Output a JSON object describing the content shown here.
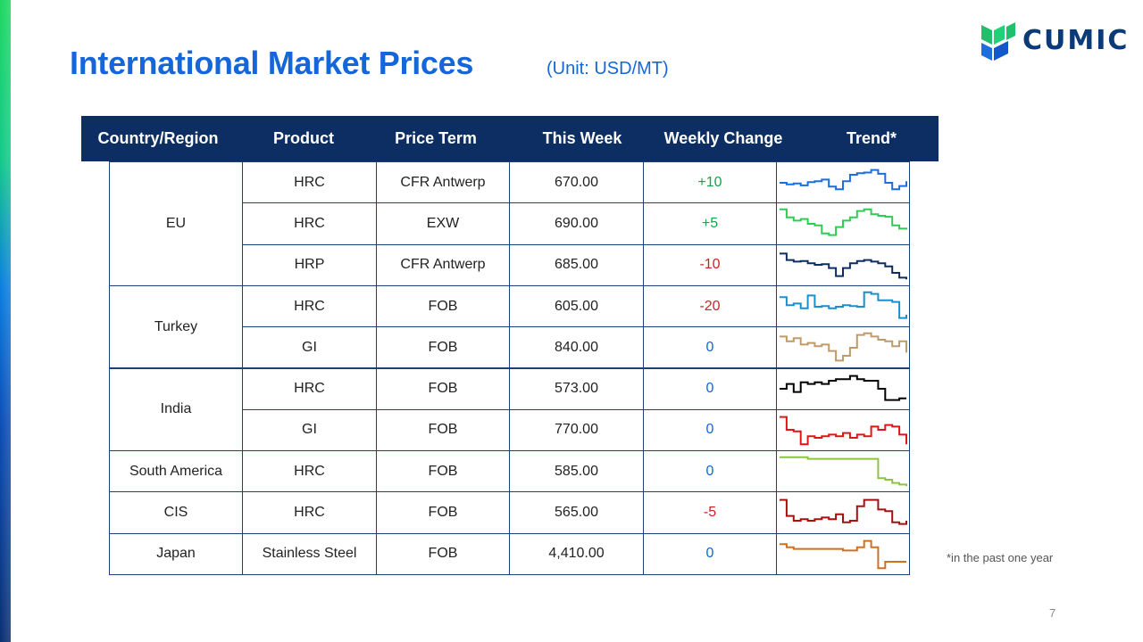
{
  "slide": {
    "title": "International Market Prices",
    "unit": "(Unit: USD/MT)",
    "footnote": "*in the past one year",
    "page_number": "7",
    "brand": "CUMIC",
    "brand_colors": {
      "title": "#1466d9",
      "header": "#0c2e63",
      "logo_green": "#1fc06b",
      "logo_blue": "#1d6fe0"
    }
  },
  "table": {
    "headers": [
      "Country/Region",
      "Product",
      "Price Term",
      "This Week",
      "Weekly Change",
      "Trend*"
    ],
    "groups": [
      {
        "region": "EU",
        "rows": [
          {
            "product": "HRC",
            "term": "CFR Antwerp",
            "price": "670.00",
            "change": "+10",
            "color": "#1a6ee0",
            "trend": [
              0.5,
              0.55,
              0.52,
              0.58,
              0.48,
              0.45,
              0.4,
              0.62,
              0.7,
              0.45,
              0.25,
              0.2,
              0.18,
              0.1,
              0.22,
              0.5,
              0.7,
              0.6,
              0.45
            ]
          },
          {
            "product": "HRC",
            "term": "EXW",
            "price": "690.00",
            "change": "+5",
            "color": "#2ecc55",
            "trend": [
              0.05,
              0.3,
              0.4,
              0.35,
              0.5,
              0.55,
              0.8,
              0.85,
              0.6,
              0.4,
              0.3,
              0.1,
              0.05,
              0.2,
              0.25,
              0.28,
              0.55,
              0.65,
              0.68
            ]
          },
          {
            "product": "HRP",
            "term": "CFR Antwerp",
            "price": "685.00",
            "change": "-10",
            "color": "#0c2e63",
            "trend": [
              0.15,
              0.35,
              0.4,
              0.38,
              0.45,
              0.5,
              0.48,
              0.6,
              0.85,
              0.6,
              0.45,
              0.38,
              0.35,
              0.4,
              0.45,
              0.55,
              0.75,
              0.9,
              0.95
            ]
          }
        ]
      },
      {
        "region": "Turkey",
        "rows": [
          {
            "product": "HRC",
            "term": "FOB",
            "price": "605.00",
            "change": "-20",
            "color": "#1a8fd0",
            "trend": [
              0.2,
              0.45,
              0.4,
              0.55,
              0.15,
              0.5,
              0.48,
              0.55,
              0.5,
              0.45,
              0.48,
              0.5,
              0.05,
              0.1,
              0.3,
              0.3,
              0.35,
              0.85,
              0.75
            ]
          },
          {
            "product": "GI",
            "term": "FOB",
            "price": "840.00",
            "change": "0",
            "color": "#c09a6b",
            "trend": [
              0.15,
              0.3,
              0.2,
              0.4,
              0.35,
              0.45,
              0.4,
              0.6,
              0.9,
              0.75,
              0.5,
              0.1,
              0.05,
              0.15,
              0.25,
              0.3,
              0.45,
              0.3,
              0.65
            ]
          }
        ]
      },
      {
        "region": "India",
        "rows": [
          {
            "product": "HRC",
            "term": "FOB",
            "price": "573.00",
            "change": "0",
            "color": "#000000",
            "trend": [
              0.5,
              0.35,
              0.6,
              0.3,
              0.35,
              0.3,
              0.35,
              0.25,
              0.2,
              0.2,
              0.1,
              0.2,
              0.25,
              0.25,
              0.5,
              0.85,
              0.85,
              0.8,
              0.8
            ]
          },
          {
            "product": "GI",
            "term": "FOB",
            "price": "770.00",
            "change": "0",
            "color": "#e01616",
            "trend": [
              0.1,
              0.5,
              0.55,
              0.95,
              0.7,
              0.75,
              0.7,
              0.65,
              0.7,
              0.6,
              0.75,
              0.65,
              0.7,
              0.4,
              0.5,
              0.35,
              0.4,
              0.65,
              0.95
            ]
          }
        ]
      },
      {
        "region": "South America",
        "rows": [
          {
            "product": "HRC",
            "term": "FOB",
            "price": "585.00",
            "change": "0",
            "color": "#8cc63f",
            "trend": [
              0.05,
              0.05,
              0.05,
              0.05,
              0.1,
              0.1,
              0.1,
              0.1,
              0.1,
              0.1,
              0.1,
              0.1,
              0.1,
              0.1,
              0.7,
              0.75,
              0.85,
              0.9,
              0.95
            ]
          }
        ]
      },
      {
        "region": "CIS",
        "rows": [
          {
            "product": "HRC",
            "term": "FOB",
            "price": "565.00",
            "change": "-5",
            "color": "#a80f0f",
            "trend": [
              0.1,
              0.6,
              0.75,
              0.7,
              0.75,
              0.7,
              0.65,
              0.7,
              0.55,
              0.8,
              0.75,
              0.3,
              0.1,
              0.1,
              0.4,
              0.45,
              0.8,
              0.85,
              0.75
            ]
          }
        ]
      },
      {
        "region": "Japan",
        "rows": [
          {
            "product": "Stainless Steel",
            "term": "FOB",
            "price": "4,410.00",
            "change": "0",
            "color": "#d07020",
            "trend": [
              0.2,
              0.3,
              0.35,
              0.35,
              0.35,
              0.35,
              0.35,
              0.35,
              0.35,
              0.4,
              0.4,
              0.3,
              0.1,
              0.3,
              0.95,
              0.75,
              0.75,
              0.75,
              0.75
            ]
          }
        ]
      }
    ]
  }
}
